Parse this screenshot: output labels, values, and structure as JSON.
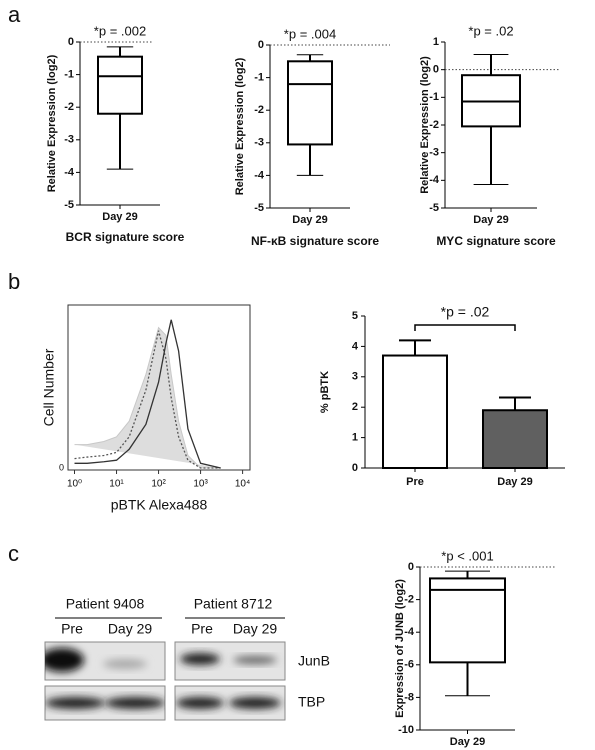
{
  "panels": [
    "a",
    "b",
    "c"
  ],
  "chart_data": [
    {
      "type": "box",
      "title": "*p = .002",
      "xlabel": "Day 29",
      "ylabel": "Relative Expression (log2)",
      "subtitle": "BCR signature score",
      "categories": [
        "Day 29"
      ],
      "boxes": [
        {
          "whislo": -3.9,
          "q1": -2.2,
          "med": -1.05,
          "q3": -0.45,
          "whishi": -0.15
        }
      ],
      "ylim": [
        -5,
        0
      ],
      "yticks": [
        0,
        -1,
        -2,
        -3,
        -4,
        -5
      ],
      "reference_line": 0
    },
    {
      "type": "box",
      "title": "*p = .004",
      "xlabel": "Day 29",
      "ylabel": "Relative Expression (log2)",
      "subtitle": "NF-κB signature score",
      "categories": [
        "Day 29"
      ],
      "boxes": [
        {
          "whislo": -4.0,
          "q1": -3.05,
          "med": -1.2,
          "q3": -0.5,
          "whishi": -0.3
        }
      ],
      "ylim": [
        -5,
        0
      ],
      "yticks": [
        0,
        -1,
        -2,
        -3,
        -4,
        -5
      ],
      "reference_line": 0
    },
    {
      "type": "box",
      "title": "*p = .02",
      "xlabel": "Day 29",
      "ylabel": "Relative Expression (log2)",
      "subtitle": "MYC signature score",
      "categories": [
        "Day 29"
      ],
      "boxes": [
        {
          "whislo": -4.15,
          "q1": -2.05,
          "med": -1.15,
          "q3": -0.2,
          "whishi": 0.55
        }
      ],
      "ylim": [
        -5,
        1
      ],
      "yticks": [
        1,
        0,
        -1,
        -2,
        -3,
        -4,
        -5
      ],
      "reference_line": 0
    },
    {
      "type": "histogram-overlay",
      "xlabel": "pBTK Alexa488",
      "ylabel": "Cell Number",
      "xscale": "log",
      "x": [
        1,
        2,
        5,
        10,
        20,
        50,
        100,
        150,
        200,
        300,
        500,
        1000,
        3000
      ],
      "series": [
        {
          "color": "#dddddd",
          "style": "filled",
          "values": [
            15,
            15,
            17,
            20,
            30,
            60,
            90,
            85,
            60,
            30,
            8,
            0,
            0
          ]
        },
        {
          "color": "#555555",
          "style": "dotted",
          "values": [
            6,
            7,
            8,
            10,
            20,
            50,
            88,
            70,
            45,
            20,
            5,
            0,
            0
          ]
        },
        {
          "color": "#333333",
          "style": "solid",
          "values": [
            3,
            3,
            4,
            5,
            12,
            28,
            55,
            80,
            95,
            75,
            25,
            3,
            0
          ]
        }
      ],
      "xlim": [
        0.7,
        15000
      ],
      "xticks": [
        {
          "value": 1,
          "label": "10⁰"
        },
        {
          "value": 10,
          "label": "10¹"
        },
        {
          "value": 100,
          "label": "10²"
        },
        {
          "value": 1000,
          "label": "10³"
        },
        {
          "value": 10000,
          "label": "10⁴"
        }
      ],
      "ylim": [
        0,
        100
      ],
      "yticks": [
        0
      ]
    },
    {
      "type": "bar",
      "title": "*p = .02",
      "ylabel": "% pBTK",
      "categories": [
        "Pre",
        "Day 29"
      ],
      "values": [
        3.7,
        1.9
      ],
      "errors": [
        0.5,
        0.42
      ],
      "colors": [
        "#ffffff",
        "#606060"
      ],
      "ylim": [
        0,
        5
      ],
      "yticks": [
        0,
        1,
        2,
        3,
        4,
        5
      ]
    },
    {
      "type": "box",
      "title": "*p < .001",
      "xlabel": "Day 29",
      "ylabel": "Expression of JUNB (log2)",
      "categories": [
        "Day 29"
      ],
      "boxes": [
        {
          "whislo": -7.9,
          "q1": -5.85,
          "med": -1.4,
          "q3": -0.7,
          "whishi": -0.25
        }
      ],
      "ylim": [
        -10,
        0
      ],
      "yticks": [
        0,
        -2,
        -4,
        -6,
        -8,
        -10
      ],
      "reference_line": 0
    }
  ],
  "blot": {
    "patients": [
      {
        "label": "Patient 9408",
        "lanes": [
          "Pre",
          "Day 29"
        ]
      },
      {
        "label": "Patient 8712",
        "lanes": [
          "Pre",
          "Day 29"
        ]
      }
    ],
    "rows": [
      "JunB",
      "TBP"
    ]
  }
}
